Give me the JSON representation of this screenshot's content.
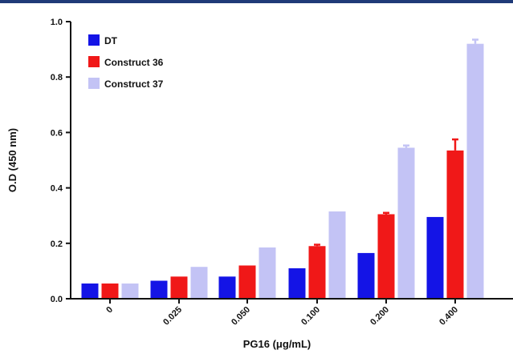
{
  "chart_data": {
    "type": "bar",
    "title": "",
    "xlabel": "PG16 (μg/mL)",
    "ylabel": "O.D (450 nm)",
    "ylim": [
      0,
      1.0
    ],
    "yticks": [
      "0.0",
      "0.2",
      "0.4",
      "0.6",
      "0.8",
      "1.0"
    ],
    "categories": [
      "0",
      "0.025",
      "0.050",
      "0.100",
      "0.200",
      "0.400"
    ],
    "legend_position": "top-left",
    "series": [
      {
        "name": "DT",
        "color": "#1414e6",
        "values": [
          0.055,
          0.065,
          0.08,
          0.11,
          0.165,
          0.295
        ],
        "errors": [
          0.002,
          0.002,
          0.003,
          0.003,
          0.003,
          0.003
        ]
      },
      {
        "name": "Construct 36",
        "color": "#f01818",
        "values": [
          0.055,
          0.08,
          0.12,
          0.19,
          0.305,
          0.535
        ],
        "errors": [
          0.002,
          0.003,
          0.003,
          0.005,
          0.005,
          0.04
        ]
      },
      {
        "name": "Construct 37",
        "color": "#c3c3f5",
        "values": [
          0.055,
          0.115,
          0.185,
          0.315,
          0.545,
          0.92
        ],
        "errors": [
          0.002,
          0.003,
          0.003,
          0.003,
          0.008,
          0.015
        ]
      }
    ],
    "grid": false
  }
}
